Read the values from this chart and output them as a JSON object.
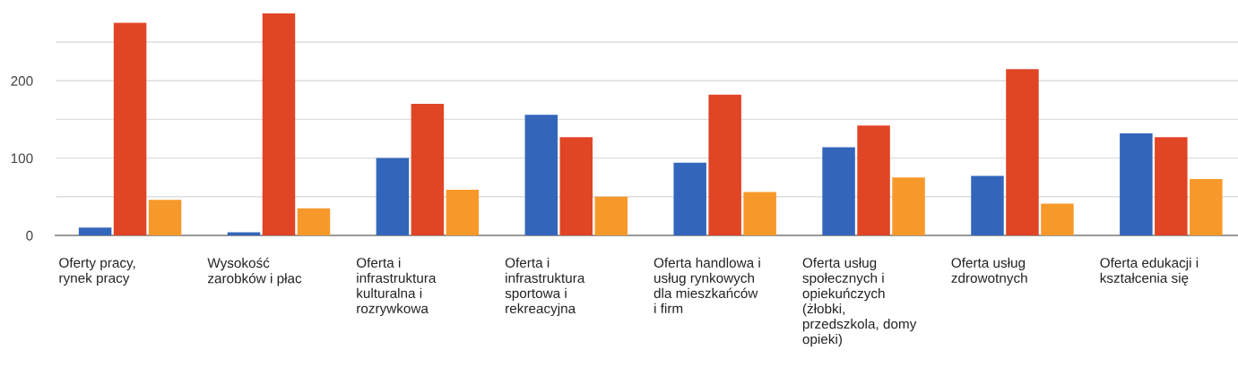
{
  "chart_data": {
    "type": "bar",
    "categories": [
      "Oferty pracy,\nrynek pracy",
      "Wysokość\nzarobków i płac",
      "Oferta i\ninfrastruktura\nkulturalna i\nrozrywkowa",
      "Oferta i\ninfrastruktura\nsportowa i\nrekreacyjna",
      "Oferta handlowa i\nusług rynkowych\ndla mieszkańców\ni firm",
      "Oferta usług\nspołecznych i\nopiekuńczych\n(żłobki,\nprzedszkola, domy\nopieki)",
      "Oferta usług\nzdrowotnych",
      "Oferta edukacji i\nkształcenia się"
    ],
    "series": [
      {
        "color": "#3366bb",
        "values": [
          10,
          4,
          100,
          156,
          94,
          114,
          77,
          132
        ]
      },
      {
        "color": "#e04525",
        "values": [
          275,
          287,
          170,
          127,
          182,
          142,
          215,
          127
        ]
      },
      {
        "color": "#f7992a",
        "values": [
          46,
          35,
          59,
          50,
          56,
          75,
          41,
          73
        ]
      }
    ],
    "ylim": [
      0,
      287
    ],
    "yticks": [
      0,
      {
        "value": 50,
        "label": null
      },
      100,
      {
        "value": 150,
        "label": null
      },
      200,
      {
        "value": 250,
        "label": null
      }
    ],
    "grid": "y"
  }
}
